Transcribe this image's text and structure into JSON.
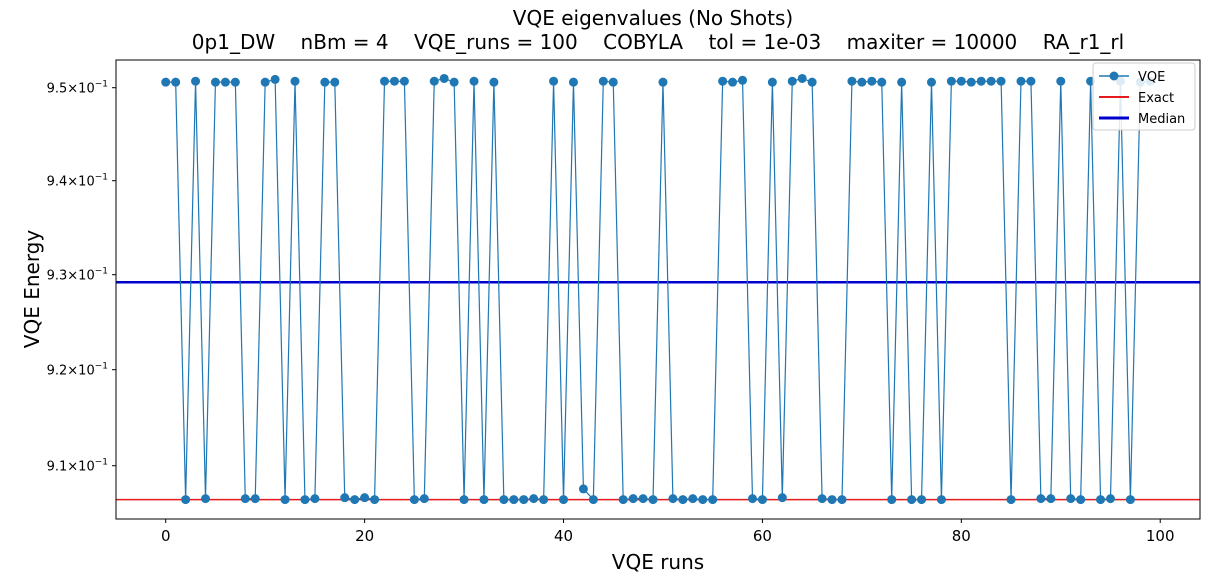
{
  "chart_data": {
    "type": "line",
    "title": "VQE eigenvalues (No Shots)",
    "subtitle": "0p1_DW    nBm = 4    VQE_runs = 100    COBYLA    tol = 1e-03    maxiter = 10000    RA_r1_rl",
    "xlabel": "VQE runs",
    "ylabel": "VQE Energy",
    "xlim": [
      -5,
      104
    ],
    "ylim": [
      0.9045,
      0.953
    ],
    "y_scale": "log",
    "grid": false,
    "legend_position": "top-right",
    "x_ticks": [
      0,
      20,
      40,
      60,
      80,
      100
    ],
    "x_tick_labels": [
      "0",
      "20",
      "40",
      "60",
      "80",
      "100"
    ],
    "y_ticks": [
      0.91,
      0.92,
      0.93,
      0.94,
      0.95
    ],
    "y_tick_mantissas": [
      "9.1",
      "9.2",
      "9.3",
      "9.4",
      "9.5"
    ],
    "y_tick_base": "10",
    "y_tick_exponent": "−1",
    "series": [
      {
        "name": "VQE",
        "type": "line-marker",
        "color": "#1f77b4",
        "x": [
          0,
          1,
          2,
          3,
          4,
          5,
          6,
          7,
          8,
          9,
          10,
          11,
          12,
          13,
          14,
          15,
          16,
          17,
          18,
          19,
          20,
          21,
          22,
          23,
          24,
          25,
          26,
          27,
          28,
          29,
          30,
          31,
          32,
          33,
          34,
          35,
          36,
          37,
          38,
          39,
          40,
          41,
          42,
          43,
          44,
          45,
          46,
          47,
          48,
          49,
          50,
          51,
          52,
          53,
          54,
          55,
          56,
          57,
          58,
          59,
          60,
          61,
          62,
          63,
          64,
          65,
          66,
          67,
          68,
          69,
          70,
          71,
          72,
          73,
          74,
          75,
          76,
          77,
          78,
          79,
          80,
          81,
          82,
          83,
          84,
          85,
          86,
          87,
          88,
          89,
          90,
          91,
          92,
          93,
          94,
          95,
          96,
          97,
          98,
          99
        ],
        "values": [
          0.9506,
          0.9506,
          0.9065,
          0.9507,
          0.9066,
          0.9506,
          0.9506,
          0.9506,
          0.9066,
          0.9066,
          0.9506,
          0.9509,
          0.9065,
          0.9507,
          0.9065,
          0.9066,
          0.9506,
          0.9506,
          0.9067,
          0.9065,
          0.9067,
          0.9065,
          0.9507,
          0.9507,
          0.9507,
          0.9065,
          0.9066,
          0.9507,
          0.951,
          0.9506,
          0.9065,
          0.9507,
          0.9065,
          0.9506,
          0.9065,
          0.9065,
          0.9065,
          0.9066,
          0.9065,
          0.9507,
          0.9065,
          0.9506,
          0.9076,
          0.9065,
          0.9507,
          0.9506,
          0.9065,
          0.9066,
          0.9066,
          0.9065,
          0.9506,
          0.9066,
          0.9065,
          0.9066,
          0.9065,
          0.9065,
          0.9507,
          0.9506,
          0.9508,
          0.9066,
          0.9065,
          0.9506,
          0.9067,
          0.9507,
          0.951,
          0.9506,
          0.9066,
          0.9065,
          0.9065,
          0.9507,
          0.9506,
          0.9507,
          0.9506,
          0.9065,
          0.9506,
          0.9065,
          0.9065,
          0.9506,
          0.9065,
          0.9507,
          0.9507,
          0.9506,
          0.9507,
          0.9507,
          0.9507,
          0.9065,
          0.9507,
          0.9507,
          0.9066,
          0.9066,
          0.9507,
          0.9066,
          0.9065,
          0.9507,
          0.9065,
          0.9066,
          0.9507,
          0.9065,
          0.9506,
          0.9507
        ]
      },
      {
        "name": "Exact",
        "type": "hline",
        "color": "#e41a1c",
        "value": 0.9065
      },
      {
        "name": "Median",
        "type": "hline",
        "color": "#0000cc",
        "value": 0.9292
      }
    ]
  }
}
